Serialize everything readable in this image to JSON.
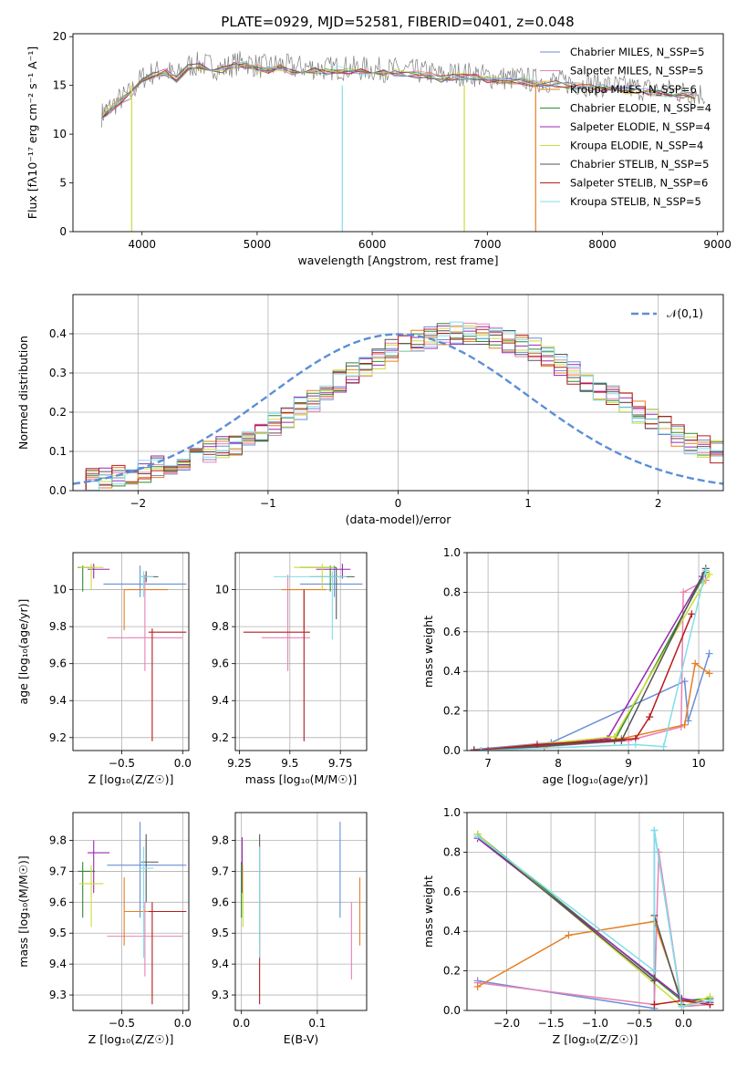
{
  "figure": {
    "title": "PLATE=0929, MJD=52581, FIBERID=0401, z=0.048"
  },
  "series_styles": [
    {
      "name": "Chabrier MILES",
      "nssp": 5,
      "color": "#6a8ed8"
    },
    {
      "name": "Salpeter MILES",
      "nssp": 5,
      "color": "#e882b4"
    },
    {
      "name": "Kroupa MILES",
      "nssp": 6,
      "color": "#e67e22"
    },
    {
      "name": "Chabrier ELODIE",
      "nssp": 4,
      "color": "#2e8b2e"
    },
    {
      "name": "Salpeter ELODIE",
      "nssp": 4,
      "color": "#9b27b0"
    },
    {
      "name": "Kroupa ELODIE",
      "nssp": 4,
      "color": "#cddc39"
    },
    {
      "name": "Chabrier STELIB",
      "nssp": 5,
      "color": "#555555"
    },
    {
      "name": "Salpeter STELIB",
      "nssp": 6,
      "color": "#b71c1c"
    },
    {
      "name": "Kroupa STELIB",
      "nssp": 5,
      "color": "#80deea"
    }
  ],
  "chart_data": [
    {
      "id": "spectrum",
      "type": "line",
      "title": "PLATE=0929, MJD=52581, FIBERID=0401, z=0.048",
      "xlabel": "wavelength [Angstrom, rest frame]",
      "ylabel": "Flux [fλ10⁻¹⁷ erg cm⁻² s⁻¹ A⁻¹]",
      "xlim": [
        3400,
        9050
      ],
      "ylim": [
        0,
        20.3
      ],
      "xticks": [
        4000,
        5000,
        6000,
        7000,
        8000,
        9000
      ],
      "yticks": [
        0,
        5,
        10,
        15,
        20
      ],
      "data_color": "#7f7f7f",
      "data_x": [
        3650,
        3700,
        3800,
        3900,
        4000,
        4100,
        4200,
        4300,
        4400,
        4500,
        4600,
        4700,
        4800,
        4900,
        5000,
        5100,
        5200,
        5300,
        5400,
        5500,
        5600,
        5700,
        5800,
        5900,
        6000,
        6100,
        6200,
        6300,
        6400,
        6500,
        6600,
        6700,
        6800,
        6900,
        7000,
        7100,
        7200,
        7300,
        7400,
        7500,
        7600,
        7700,
        7800,
        7900,
        8000,
        8100,
        8200,
        8300,
        8400,
        8500,
        8600,
        8700,
        8800,
        8900
      ],
      "data_y": [
        12.0,
        12.5,
        13.5,
        14.2,
        15.8,
        16.3,
        16.6,
        15.9,
        17.0,
        17.2,
        17.0,
        16.7,
        17.2,
        17.4,
        17.0,
        16.9,
        17.2,
        16.8,
        16.9,
        16.8,
        16.7,
        16.8,
        16.8,
        16.7,
        16.7,
        16.6,
        16.6,
        16.5,
        16.4,
        16.3,
        16.0,
        16.2,
        16.2,
        16.1,
        15.9,
        15.8,
        15.7,
        15.7,
        15.5,
        15.5,
        15.4,
        15.3,
        15.2,
        15.1,
        15.0,
        14.9,
        14.8,
        14.7,
        14.6,
        14.5,
        14.4,
        14.3,
        14.2,
        14.1
      ],
      "model_x": [
        3650,
        3700,
        3800,
        3900,
        4000,
        4100,
        4200,
        4300,
        4400,
        4500,
        4600,
        4700,
        4800,
        4900,
        5000,
        5100,
        5200,
        5300,
        5400,
        5500,
        5600,
        5700,
        5800,
        5900,
        6000,
        6100,
        6200,
        6300,
        6400,
        6500,
        6600,
        6700,
        6800,
        6900,
        7000,
        7100,
        7200,
        7300,
        7400,
        7500,
        7600,
        7700,
        7800,
        7900,
        8000,
        8100,
        8200,
        8300,
        8400,
        8500,
        8600,
        8700,
        8800
      ],
      "model_y": [
        12.0,
        12.2,
        13.3,
        14.0,
        15.5,
        16.0,
        16.3,
        15.6,
        16.8,
        17.0,
        16.8,
        16.5,
        17.0,
        17.1,
        16.7,
        16.6,
        16.9,
        16.4,
        16.6,
        16.5,
        16.4,
        16.6,
        16.5,
        16.4,
        16.4,
        16.3,
        16.3,
        16.2,
        16.1,
        16.0,
        15.7,
        15.9,
        15.9,
        15.8,
        15.6,
        15.5,
        15.4,
        15.4,
        15.2,
        15.2,
        15.1,
        15.0,
        14.9,
        14.8,
        14.7,
        14.6,
        14.5,
        14.4,
        14.3,
        14.2,
        14.1,
        14.0,
        13.9
      ],
      "dropouts": [
        {
          "x": 3910,
          "color": "#cddc39"
        },
        {
          "x": 5740,
          "color": "#80deea"
        },
        {
          "x": 6800,
          "color": "#cddc39"
        },
        {
          "x": 7420,
          "color": "#e67e22"
        }
      ],
      "legend": [
        "Chabrier MILES, N_SSP=5",
        "Salpeter MILES, N_SSP=5",
        "Kroupa MILES, N_SSP=6",
        "Chabrier ELODIE, N_SSP=4",
        "Salpeter ELODIE, N_SSP=4",
        "Kroupa ELODIE, N_SSP=4",
        "Chabrier STELIB, N_SSP=5",
        "Salpeter STELIB, N_SSP=6",
        "Kroupa STELIB, N_SSP=5"
      ],
      "legend_placement": "right",
      "grid": false
    },
    {
      "id": "residuals",
      "type": "histogram",
      "xlabel": "(data-model)/error",
      "ylabel": "Normed distribution",
      "xlim": [
        -2.5,
        2.5
      ],
      "ylim": [
        0,
        0.5
      ],
      "xticks": [
        -2,
        -1,
        0,
        1,
        2
      ],
      "yticks": [
        0.0,
        0.1,
        0.2,
        0.3,
        0.4
      ],
      "bin_width": 0.1,
      "bin_start": -2.5,
      "base_density": [
        0.02,
        0.03,
        0.03,
        0.04,
        0.04,
        0.05,
        0.06,
        0.07,
        0.08,
        0.09,
        0.1,
        0.11,
        0.12,
        0.14,
        0.15,
        0.17,
        0.19,
        0.21,
        0.23,
        0.25,
        0.28,
        0.3,
        0.32,
        0.34,
        0.36,
        0.37,
        0.38,
        0.39,
        0.4,
        0.4,
        0.4,
        0.4,
        0.39,
        0.38,
        0.37,
        0.36,
        0.34,
        0.32,
        0.3,
        0.28,
        0.26,
        0.24,
        0.22,
        0.2,
        0.18,
        0.16,
        0.14,
        0.12,
        0.11,
        0.1
      ],
      "gauss_label": "𝒩(0,1)",
      "gauss_color": "#5b8fd6",
      "legend_placement": "upper right",
      "grid": true
    },
    {
      "id": "age_vs_Z",
      "type": "errorbar",
      "xlabel": "Z [log₁₀(Z/Z☉)]",
      "ylabel": "age  [log₁₀(age/yr)]",
      "xlim": [
        -0.9,
        0.05
      ],
      "ylim": [
        9.13,
        10.2
      ],
      "xticks": [
        -0.5,
        0.0
      ],
      "xtick_labels": [
        "−0.5",
        "0.0"
      ],
      "yticks": [
        9.2,
        9.4,
        9.6,
        9.8,
        10.0
      ],
      "points": [
        {
          "s": 0,
          "x": -0.35,
          "y": 10.03,
          "xlo": -0.65,
          "xhi": 0.03,
          "ylo": 9.96,
          "yhi": 10.13
        },
        {
          "s": 1,
          "x": -0.31,
          "y": 9.74,
          "xlo": -0.62,
          "xhi": 0.0,
          "ylo": 9.56,
          "yhi": 10.08
        },
        {
          "s": 2,
          "x": -0.48,
          "y": 10.0,
          "xlo": -0.48,
          "xhi": -0.12,
          "ylo": 9.78,
          "yhi": 10.0
        },
        {
          "s": 3,
          "x": -0.82,
          "y": 10.12,
          "xlo": -0.86,
          "xhi": -0.72,
          "ylo": 9.99,
          "yhi": 10.13
        },
        {
          "s": 4,
          "x": -0.73,
          "y": 10.11,
          "xlo": -0.78,
          "xhi": -0.6,
          "ylo": 10.06,
          "yhi": 10.14
        },
        {
          "s": 5,
          "x": -0.75,
          "y": 10.12,
          "xlo": -0.85,
          "xhi": -0.65,
          "ylo": 10.0,
          "yhi": 10.14
        },
        {
          "s": 6,
          "x": -0.3,
          "y": 10.07,
          "xlo": -0.34,
          "xhi": -0.2,
          "ylo": 10.04,
          "yhi": 10.1
        },
        {
          "s": 7,
          "x": -0.25,
          "y": 9.77,
          "xlo": -0.28,
          "xhi": 0.03,
          "ylo": 9.18,
          "yhi": 9.79
        },
        {
          "s": 8,
          "x": -0.32,
          "y": 10.07,
          "xlo": -0.36,
          "xhi": -0.24,
          "ylo": 9.96,
          "yhi": 10.1
        }
      ],
      "grid": true
    },
    {
      "id": "age_vs_mass",
      "type": "errorbar",
      "xlabel": "mass [log₁₀(M/M☉)]",
      "xlim": [
        9.23,
        9.88
      ],
      "ylim": [
        9.13,
        10.2
      ],
      "xticks": [
        9.25,
        9.5,
        9.75
      ],
      "yticks": [
        9.2,
        9.4,
        9.6,
        9.8,
        10.0
      ],
      "points": [
        {
          "s": 0,
          "x": 9.72,
          "y": 10.03,
          "xlo": 9.55,
          "xhi": 9.86,
          "ylo": 9.96,
          "yhi": 10.13
        },
        {
          "s": 1,
          "x": 9.49,
          "y": 9.74,
          "xlo": 9.36,
          "xhi": 9.6,
          "ylo": 9.56,
          "yhi": 10.08
        },
        {
          "s": 2,
          "x": 9.57,
          "y": 10.0,
          "xlo": 9.46,
          "xhi": 9.68,
          "ylo": 9.78,
          "yhi": 10.0
        },
        {
          "s": 3,
          "x": 9.7,
          "y": 10.12,
          "xlo": 9.55,
          "xhi": 9.73,
          "ylo": 9.99,
          "yhi": 10.13
        },
        {
          "s": 4,
          "x": 9.76,
          "y": 10.11,
          "xlo": 9.63,
          "xhi": 9.8,
          "ylo": 10.06,
          "yhi": 10.14
        },
        {
          "s": 5,
          "x": 9.66,
          "y": 10.12,
          "xlo": 9.52,
          "xhi": 9.72,
          "ylo": 10.0,
          "yhi": 10.14
        },
        {
          "s": 6,
          "x": 9.73,
          "y": 10.07,
          "xlo": 9.6,
          "xhi": 9.82,
          "ylo": 9.84,
          "yhi": 10.12
        },
        {
          "s": 7,
          "x": 9.57,
          "y": 9.77,
          "xlo": 9.27,
          "xhi": 9.6,
          "ylo": 9.18,
          "yhi": 10.0
        },
        {
          "s": 8,
          "x": 9.71,
          "y": 10.07,
          "xlo": 9.42,
          "xhi": 9.78,
          "ylo": 9.73,
          "yhi": 10.1
        }
      ],
      "grid": true
    },
    {
      "id": "mass_weight_vs_age",
      "type": "line",
      "xlabel": "age  [log₁₀(age/yr)]",
      "ylabel": "mass weight",
      "xlim": [
        6.7,
        10.35
      ],
      "ylim": [
        0,
        1.0
      ],
      "xticks": [
        7,
        8,
        9,
        10
      ],
      "yticks": [
        0.0,
        0.2,
        0.4,
        0.6,
        0.8,
        1.0
      ],
      "series": [
        {
          "s": 0,
          "x": [
            6.8,
            7.9,
            9.8,
            9.85,
            10.15
          ],
          "y": [
            0.005,
            0.04,
            0.35,
            0.15,
            0.49
          ]
        },
        {
          "s": 1,
          "x": [
            6.8,
            7.8,
            9.0,
            9.75,
            9.78,
            10.1
          ],
          "y": [
            0.0,
            0.02,
            0.05,
            0.12,
            0.8,
            0.86
          ]
        },
        {
          "s": 2,
          "x": [
            6.8,
            7.8,
            8.9,
            9.8,
            9.95,
            10.15
          ],
          "y": [
            0.0,
            0.02,
            0.06,
            0.13,
            0.44,
            0.39
          ]
        },
        {
          "s": 3,
          "x": [
            6.8,
            8.8,
            10.1
          ],
          "y": [
            0.0,
            0.05,
            0.9
          ]
        },
        {
          "s": 4,
          "x": [
            7.0,
            8.7,
            10.05
          ],
          "y": [
            0.0,
            0.06,
            0.88
          ]
        },
        {
          "s": 5,
          "x": [
            6.8,
            8.8,
            10.15
          ],
          "y": [
            0.0,
            0.07,
            0.89
          ]
        },
        {
          "s": 6,
          "x": [
            6.9,
            8.9,
            10.1
          ],
          "y": [
            0.0,
            0.05,
            0.92
          ]
        },
        {
          "s": 7,
          "x": [
            6.8,
            7.7,
            9.1,
            9.3,
            9.9
          ],
          "y": [
            0.0,
            0.03,
            0.06,
            0.17,
            0.69
          ]
        },
        {
          "s": 8,
          "x": [
            6.9,
            9.1,
            9.5,
            10.1
          ],
          "y": [
            0.0,
            0.03,
            0.02,
            0.91
          ]
        }
      ],
      "grid": true
    },
    {
      "id": "mass_vs_Z",
      "type": "errorbar",
      "xlabel": "Z [log₁₀(Z/Z☉)]",
      "ylabel": "mass [log₁₀(M/M☉)]",
      "xlim": [
        -0.9,
        0.05
      ],
      "ylim": [
        9.25,
        9.89
      ],
      "xticks": [
        -0.5,
        0.0
      ],
      "xtick_labels": [
        "−0.5",
        "0.0"
      ],
      "yticks": [
        9.3,
        9.4,
        9.5,
        9.6,
        9.7,
        9.8
      ],
      "points": [
        {
          "s": 0,
          "x": -0.35,
          "y": 9.72,
          "xlo": -0.62,
          "xhi": 0.03,
          "ylo": 9.55,
          "yhi": 9.86
        },
        {
          "s": 1,
          "x": -0.31,
          "y": 9.49,
          "xlo": -0.62,
          "xhi": 0.0,
          "ylo": 9.36,
          "yhi": 9.6
        },
        {
          "s": 2,
          "x": -0.48,
          "y": 9.57,
          "xlo": -0.48,
          "xhi": 0.0,
          "ylo": 9.46,
          "yhi": 9.68
        },
        {
          "s": 3,
          "x": -0.82,
          "y": 9.7,
          "xlo": -0.86,
          "xhi": -0.72,
          "ylo": 9.55,
          "yhi": 9.73
        },
        {
          "s": 4,
          "x": -0.73,
          "y": 9.76,
          "xlo": -0.78,
          "xhi": -0.6,
          "ylo": 9.63,
          "yhi": 9.8
        },
        {
          "s": 5,
          "x": -0.75,
          "y": 9.66,
          "xlo": -0.85,
          "xhi": -0.65,
          "ylo": 9.52,
          "yhi": 9.72
        },
        {
          "s": 6,
          "x": -0.3,
          "y": 9.73,
          "xlo": -0.34,
          "xhi": -0.2,
          "ylo": 9.6,
          "yhi": 9.82
        },
        {
          "s": 7,
          "x": -0.25,
          "y": 9.57,
          "xlo": -0.28,
          "xhi": 0.03,
          "ylo": 9.27,
          "yhi": 9.6
        },
        {
          "s": 8,
          "x": -0.32,
          "y": 9.71,
          "xlo": -0.36,
          "xhi": -0.24,
          "ylo": 9.42,
          "yhi": 9.78
        }
      ],
      "grid": true
    },
    {
      "id": "mass_vs_EBV",
      "type": "errorbar",
      "xlabel": "E(B-V)",
      "xlim": [
        -0.008,
        0.165
      ],
      "ylim": [
        9.25,
        9.89
      ],
      "xticks": [
        0.0,
        0.1
      ],
      "xtick_labels": [
        "0.0",
        "0.1"
      ],
      "yticks": [
        9.3,
        9.4,
        9.5,
        9.6,
        9.7,
        9.8
      ],
      "points": [
        {
          "s": 0,
          "x": 0.13,
          "y": 9.72,
          "ylo": 9.55,
          "yhi": 9.86
        },
        {
          "s": 1,
          "x": 0.145,
          "y": 9.49,
          "ylo": 9.35,
          "yhi": 9.6
        },
        {
          "s": 2,
          "x": 0.156,
          "y": 9.57,
          "ylo": 9.46,
          "yhi": 9.68
        },
        {
          "s": 3,
          "x": 0.0,
          "y": 9.7,
          "ylo": 9.55,
          "yhi": 9.73
        },
        {
          "s": 4,
          "x": 0.001,
          "y": 9.76,
          "ylo": 9.63,
          "yhi": 9.81
        },
        {
          "s": 5,
          "x": 0.002,
          "y": 9.66,
          "ylo": 9.52,
          "yhi": 9.72
        },
        {
          "s": 6,
          "x": 0.024,
          "y": 9.73,
          "ylo": 9.6,
          "yhi": 9.82
        },
        {
          "s": 7,
          "x": 0.024,
          "y": 9.57,
          "ylo": 9.27,
          "yhi": 9.6
        },
        {
          "s": 8,
          "x": 0.024,
          "y": 9.71,
          "ylo": 9.42,
          "yhi": 9.78
        }
      ],
      "grid": true
    },
    {
      "id": "mass_weight_vs_Z",
      "type": "line",
      "xlabel": "Z [log₁₀(Z/Z☉)]",
      "ylabel": "mass weight",
      "xlim": [
        -2.45,
        0.45
      ],
      "ylim": [
        0,
        1.0
      ],
      "xticks": [
        -2.0,
        -1.5,
        -1.0,
        -0.5,
        0.0
      ],
      "xtick_labels": [
        "−2.0",
        "−1.5",
        "−1.0",
        "−0.5",
        "0.0"
      ],
      "yticks": [
        0.0,
        0.2,
        0.4,
        0.6,
        0.8,
        1.0
      ],
      "series": [
        {
          "s": 0,
          "x": [
            -2.33,
            -0.33,
            -0.33,
            -0.02,
            0.3
          ],
          "y": [
            0.15,
            0.01,
            0.91,
            0.02,
            0.03
          ]
        },
        {
          "s": 1,
          "x": [
            -2.33,
            -0.33,
            -0.28,
            -0.02,
            0.3
          ],
          "y": [
            0.14,
            0.03,
            0.8,
            0.02,
            0.03
          ]
        },
        {
          "s": 2,
          "x": [
            -2.33,
            -1.3,
            -0.33,
            -0.02,
            0.3
          ],
          "y": [
            0.12,
            0.38,
            0.45,
            0.05,
            0.04
          ]
        },
        {
          "s": 3,
          "x": [
            -2.33,
            -0.02,
            0.3
          ],
          "y": [
            0.89,
            0.05,
            0.06
          ]
        },
        {
          "s": 4,
          "x": [
            -2.33,
            -0.02,
            0.3
          ],
          "y": [
            0.87,
            0.06,
            0.04
          ]
        },
        {
          "s": 5,
          "x": [
            -2.33,
            -0.02,
            0.3
          ],
          "y": [
            0.89,
            0.02,
            0.07
          ]
        },
        {
          "s": 6,
          "x": [
            -2.33,
            -0.33,
            -0.33,
            -0.02
          ],
          "y": [
            0.88,
            0.15,
            0.48,
            0.03
          ]
        },
        {
          "s": 7,
          "x": [
            -0.33,
            -0.02,
            0.3
          ],
          "y": [
            0.03,
            0.05,
            0.03
          ]
        },
        {
          "s": 8,
          "x": [
            -2.33,
            -0.33,
            -0.33,
            -0.02,
            0.3
          ],
          "y": [
            0.88,
            0.2,
            0.91,
            0.02,
            0.05
          ]
        }
      ],
      "grid": true
    }
  ]
}
